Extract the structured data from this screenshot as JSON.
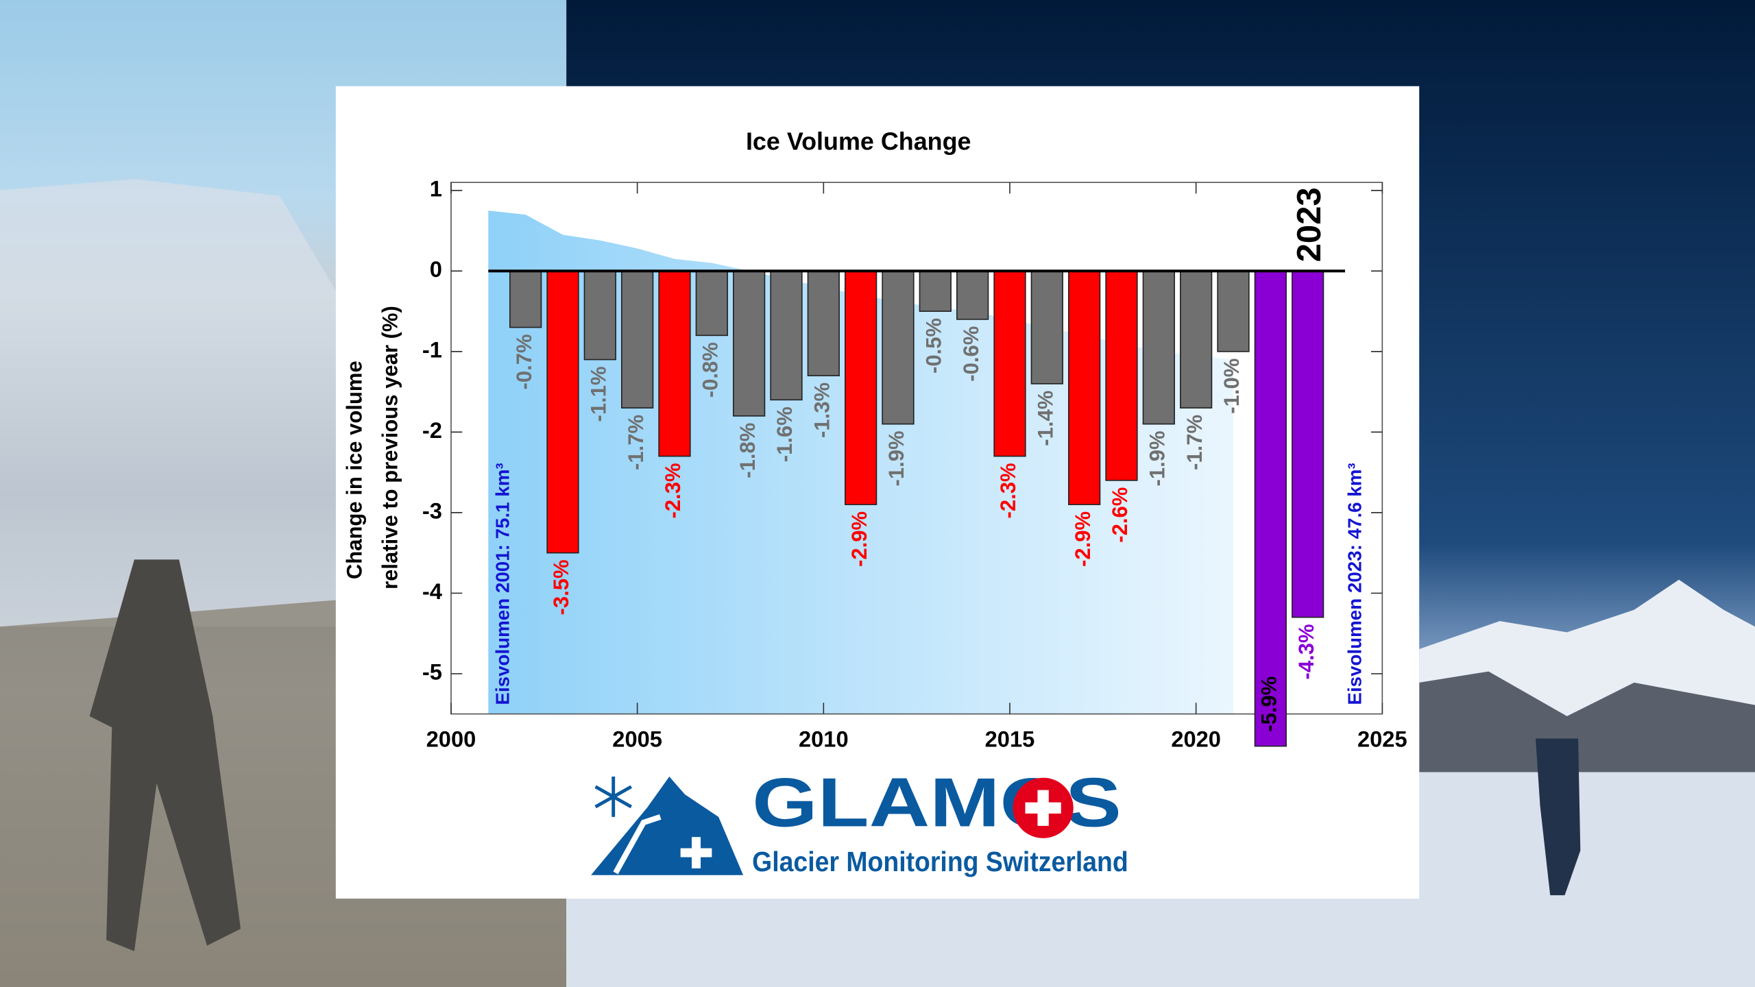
{
  "chart_data": {
    "type": "bar",
    "title": "Ice Volume Change",
    "y_label": [
      "Change in ice volume",
      "relative to previous year (%)"
    ],
    "x": [
      2002,
      2003,
      2004,
      2005,
      2006,
      2007,
      2008,
      2009,
      2010,
      2011,
      2012,
      2013,
      2014,
      2015,
      2016,
      2017,
      2018,
      2019,
      2020,
      2021,
      2022,
      2023
    ],
    "values": [
      -0.7,
      -3.5,
      -1.1,
      -1.7,
      -2.3,
      -0.8,
      -1.8,
      -1.6,
      -1.3,
      -2.9,
      -1.9,
      -0.5,
      -0.6,
      -2.3,
      -1.4,
      -2.9,
      -2.6,
      -1.9,
      -1.7,
      -1.0,
      -5.9,
      -4.3
    ],
    "value_labels": [
      "-0.7%",
      "-3.5%",
      "-1.1%",
      "-1.7%",
      "-2.3%",
      "-0.8%",
      "-1.8%",
      "-1.6%",
      "-1.3%",
      "-2.9%",
      "-1.9%",
      "-0.5%",
      "-0.6%",
      "-2.3%",
      "-1.4%",
      "-2.9%",
      "-2.6%",
      "-1.9%",
      "-1.7%",
      "-1.0%",
      "-5.9%",
      "-4.3%"
    ],
    "colors": [
      "#707070",
      "#ff0000",
      "#707070",
      "#707070",
      "#ff0000",
      "#707070",
      "#707070",
      "#707070",
      "#707070",
      "#ff0000",
      "#707070",
      "#707070",
      "#707070",
      "#ff0000",
      "#707070",
      "#ff0000",
      "#ff0000",
      "#707070",
      "#707070",
      "#707070",
      "#8a00d4",
      "#8a00d4"
    ],
    "label_colors": [
      "#707070",
      "#ff0000",
      "#707070",
      "#707070",
      "#ff0000",
      "#707070",
      "#707070",
      "#707070",
      "#707070",
      "#ff0000",
      "#707070",
      "#707070",
      "#707070",
      "#ff0000",
      "#707070",
      "#ff0000",
      "#ff0000",
      "#707070",
      "#707070",
      "#707070",
      "#000000",
      "#8a00d4"
    ],
    "volume_area": {
      "x": [
        2001,
        2002,
        2003,
        2004,
        2005,
        2006,
        2007,
        2008,
        2009,
        2010,
        2011,
        2012,
        2013,
        2014,
        2015,
        2016,
        2017,
        2018,
        2019,
        2020,
        2021
      ],
      "values": [
        0.75,
        0.7,
        0.45,
        0.38,
        0.28,
        0.15,
        0.1,
        0.0,
        -0.1,
        -0.2,
        -0.3,
        -0.38,
        -0.45,
        -0.5,
        -0.6,
        -0.7,
        -0.8,
        -0.9,
        -1.0,
        -1.05,
        -1.1
      ]
    },
    "xlim": [
      2000,
      2025
    ],
    "xticks": [
      2000,
      2005,
      2010,
      2015,
      2020,
      2025
    ],
    "ylim": [
      -5.5,
      1.1
    ],
    "yticks": [
      -5,
      -4,
      -3,
      -2,
      -1,
      0,
      1
    ],
    "annotations": [
      "Eisvolumen 2001: 75.1 km³",
      "Eisvolumen 2023: 47.6 km³",
      "2023"
    ]
  },
  "logo": {
    "name": "GLAMOS",
    "subtitle": "Glacier Monitoring Switzerland"
  }
}
